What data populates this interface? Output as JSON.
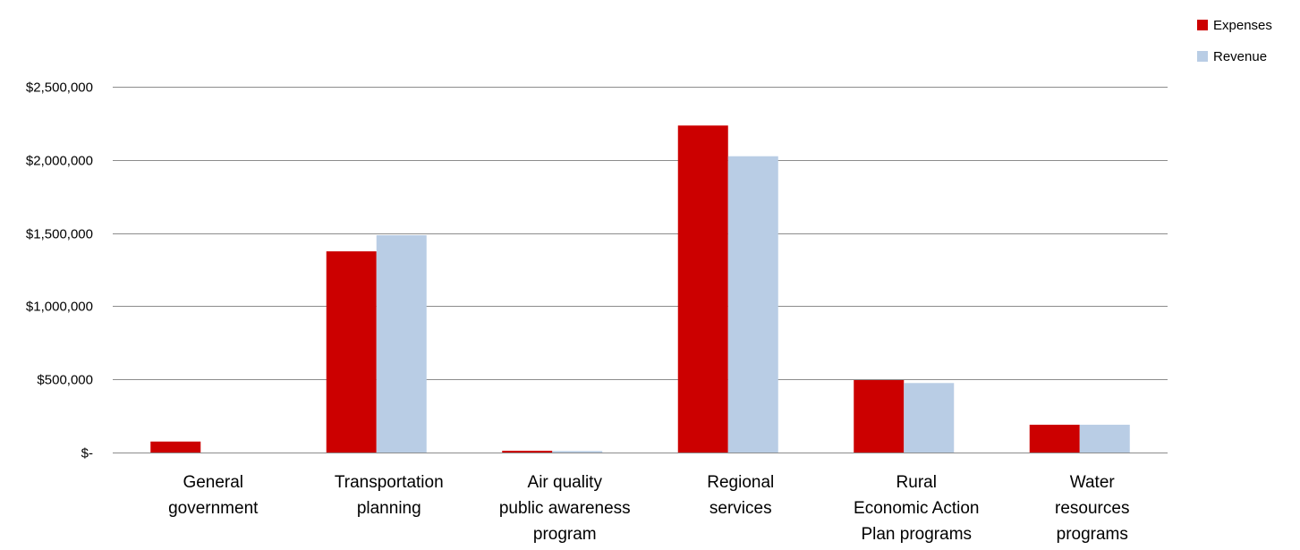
{
  "chart_data": {
    "type": "bar",
    "categories": [
      [
        "General",
        "government"
      ],
      [
        "Transportation",
        "planning"
      ],
      [
        "Air quality",
        "public awareness",
        "program"
      ],
      [
        "Regional",
        "services"
      ],
      [
        "Rural",
        "Economic Action",
        "Plan programs"
      ],
      [
        "Water",
        "resources",
        "programs"
      ]
    ],
    "series": [
      {
        "name": "Expenses",
        "color": "#cc0000",
        "values": [
          75000,
          1375000,
          12000,
          2235000,
          495000,
          190000
        ]
      },
      {
        "name": "Revenue",
        "color": "#b9cde5",
        "values": [
          0,
          1485000,
          10000,
          2025000,
          475000,
          190000
        ]
      }
    ],
    "y_ticks": [
      {
        "value": 0,
        "label": "$-"
      },
      {
        "value": 500000,
        "label": "$500,000"
      },
      {
        "value": 1000000,
        "label": "$1,000,000"
      },
      {
        "value": 1500000,
        "label": "$1,500,000"
      },
      {
        "value": 2000000,
        "label": "$2,000,000"
      },
      {
        "value": 2500000,
        "label": "$2,500,000"
      }
    ],
    "ylim": [
      0,
      2500000
    ],
    "grid": true,
    "legend": "top-right",
    "title": "",
    "xlabel": "",
    "ylabel": ""
  }
}
